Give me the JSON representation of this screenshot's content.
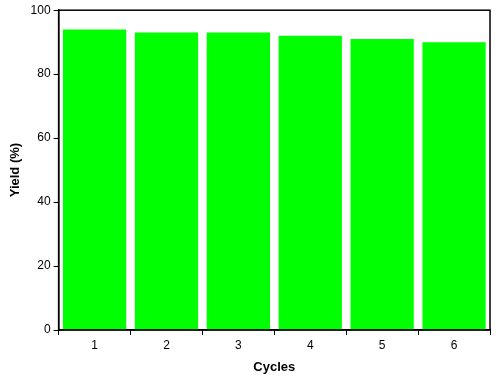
{
  "chart_data": {
    "type": "bar",
    "categories": [
      "1",
      "2",
      "3",
      "4",
      "5",
      "6"
    ],
    "values": [
      94,
      93,
      93,
      92,
      91,
      90
    ],
    "color": "#00ff00",
    "xlabel": "Cycles",
    "ylabel": "Yield (%)",
    "ylim": [
      0,
      100
    ],
    "yticks": [
      0,
      20,
      40,
      60,
      80,
      100
    ],
    "grid": false
  }
}
